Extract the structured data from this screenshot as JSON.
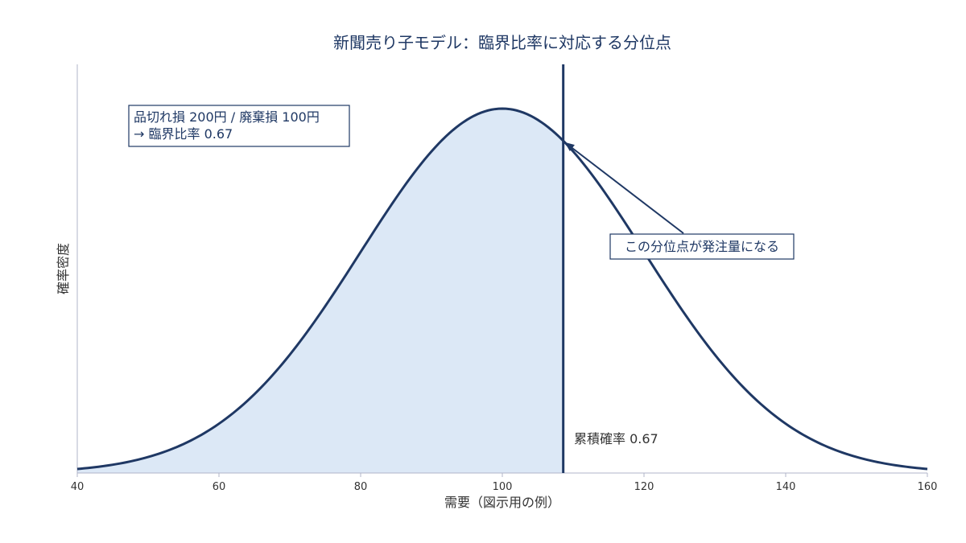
{
  "chart_data": {
    "type": "area",
    "title": "新聞売り子モデル：臨界比率に対応する分位点",
    "xlabel": "需要（図示用の例）",
    "ylabel": "確率密度",
    "xlim": [
      40,
      160
    ],
    "x_ticks": [
      40,
      60,
      80,
      100,
      120,
      140,
      160
    ],
    "grid": false,
    "distribution": {
      "kind": "normal",
      "mean": 100,
      "std": 20
    },
    "quantile_x": 108.6,
    "shaded_region": [
      40,
      108.6
    ],
    "annotations": {
      "cost_box_line1": "品切れ損 200円 / 廃棄損 100円",
      "cost_box_line2": "→ 臨界比率 0.67",
      "arrow_label": "この分位点が発注量になる",
      "cumulative_label": "累積確率 0.67"
    },
    "colors": {
      "curve": "#1f3864",
      "fill": "#dce8f6",
      "quantile_line": "#1f3864",
      "axis": "#b0b4c8",
      "text_dark": "#1f3864"
    }
  }
}
